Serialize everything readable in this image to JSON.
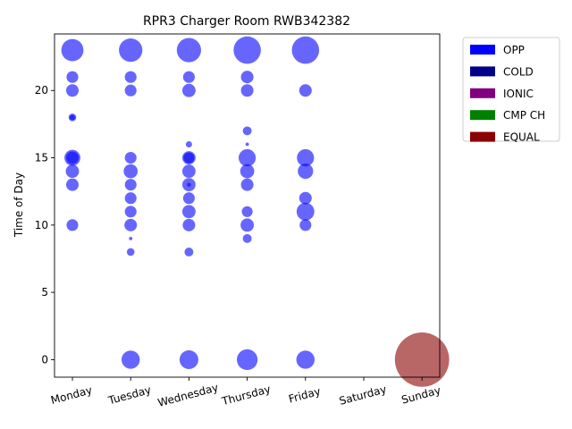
{
  "chart_data": {
    "type": "scatter",
    "title": "RPR3 Charger Room RWB342382",
    "xlabel": "",
    "ylabel": "Time of Day",
    "categories": [
      "Monday",
      "Tuesday",
      "Wednesday",
      "Thursday",
      "Friday",
      "Saturday",
      "Sunday"
    ],
    "ylim": [
      -1.3,
      24.2
    ],
    "yticks": [
      0,
      5,
      10,
      15,
      20
    ],
    "grid": false,
    "legend_position": "outside top-right",
    "legend": [
      {
        "label": "OPP",
        "color": "#0000ff"
      },
      {
        "label": "COLD",
        "color": "#00008b"
      },
      {
        "label": "IONIC",
        "color": "#800080"
      },
      {
        "label": "CMP CH",
        "color": "#008000"
      },
      {
        "label": "EQUAL",
        "color": "#8b0000"
      }
    ],
    "series": [
      {
        "type": "OPP",
        "color": "#0000ff",
        "points": [
          {
            "day": "Monday",
            "hour": 23,
            "size": 250
          },
          {
            "day": "Monday",
            "hour": 21,
            "size": 70
          },
          {
            "day": "Monday",
            "hour": 20,
            "size": 80
          },
          {
            "day": "Monday",
            "hour": 18,
            "size": 30
          },
          {
            "day": "Monday",
            "hour": 18,
            "size": 15
          },
          {
            "day": "Monday",
            "hour": 15,
            "size": 130
          },
          {
            "day": "Monday",
            "hour": 15,
            "size": 80
          },
          {
            "day": "Monday",
            "hour": 14,
            "size": 90
          },
          {
            "day": "Monday",
            "hour": 13,
            "size": 80
          },
          {
            "day": "Monday",
            "hour": 10,
            "size": 70
          },
          {
            "day": "Tuesday",
            "hour": 23,
            "size": 280
          },
          {
            "day": "Tuesday",
            "hour": 21,
            "size": 70
          },
          {
            "day": "Tuesday",
            "hour": 20,
            "size": 70
          },
          {
            "day": "Tuesday",
            "hour": 15,
            "size": 70
          },
          {
            "day": "Tuesday",
            "hour": 14,
            "size": 100
          },
          {
            "day": "Tuesday",
            "hour": 13,
            "size": 70
          },
          {
            "day": "Tuesday",
            "hour": 12,
            "size": 70
          },
          {
            "day": "Tuesday",
            "hour": 11,
            "size": 70
          },
          {
            "day": "Tuesday",
            "hour": 10,
            "size": 80
          },
          {
            "day": "Tuesday",
            "hour": 9,
            "size": 6
          },
          {
            "day": "Tuesday",
            "hour": 8,
            "size": 30
          },
          {
            "day": "Tuesday",
            "hour": 0,
            "size": 170
          },
          {
            "day": "Wednesday",
            "hour": 23,
            "size": 300
          },
          {
            "day": "Wednesday",
            "hour": 21,
            "size": 70
          },
          {
            "day": "Wednesday",
            "hour": 20,
            "size": 90
          },
          {
            "day": "Wednesday",
            "hour": 16,
            "size": 20
          },
          {
            "day": "Wednesday",
            "hour": 15,
            "size": 90
          },
          {
            "day": "Wednesday",
            "hour": 15,
            "size": 60
          },
          {
            "day": "Wednesday",
            "hour": 14,
            "size": 90
          },
          {
            "day": "Wednesday",
            "hour": 13,
            "size": 90
          },
          {
            "day": "Wednesday",
            "hour": 13,
            "size": 8
          },
          {
            "day": "Wednesday",
            "hour": 12,
            "size": 70
          },
          {
            "day": "Wednesday",
            "hour": 11,
            "size": 90
          },
          {
            "day": "Wednesday",
            "hour": 10,
            "size": 80
          },
          {
            "day": "Wednesday",
            "hour": 8,
            "size": 40
          },
          {
            "day": "Wednesday",
            "hour": 0,
            "size": 180
          },
          {
            "day": "Thursday",
            "hour": 23,
            "size": 380
          },
          {
            "day": "Thursday",
            "hour": 21,
            "size": 80
          },
          {
            "day": "Thursday",
            "hour": 20,
            "size": 80
          },
          {
            "day": "Thursday",
            "hour": 17,
            "size": 40
          },
          {
            "day": "Thursday",
            "hour": 16,
            "size": 6
          },
          {
            "day": "Thursday",
            "hour": 15,
            "size": 150
          },
          {
            "day": "Thursday",
            "hour": 14,
            "size": 100
          },
          {
            "day": "Thursday",
            "hour": 13,
            "size": 80
          },
          {
            "day": "Thursday",
            "hour": 11,
            "size": 60
          },
          {
            "day": "Thursday",
            "hour": 10,
            "size": 90
          },
          {
            "day": "Thursday",
            "hour": 9,
            "size": 40
          },
          {
            "day": "Thursday",
            "hour": 0,
            "size": 220
          },
          {
            "day": "Friday",
            "hour": 23,
            "size": 380
          },
          {
            "day": "Friday",
            "hour": 20,
            "size": 80
          },
          {
            "day": "Friday",
            "hour": 15,
            "size": 150
          },
          {
            "day": "Friday",
            "hour": 14,
            "size": 120
          },
          {
            "day": "Friday",
            "hour": 12,
            "size": 80
          },
          {
            "day": "Friday",
            "hour": 11,
            "size": 160
          },
          {
            "day": "Friday",
            "hour": 10,
            "size": 70
          },
          {
            "day": "Friday",
            "hour": 0,
            "size": 170
          }
        ]
      },
      {
        "type": "EQUAL",
        "color": "#8b0000",
        "points": [
          {
            "day": "Sunday",
            "hour": 0,
            "size": 1500
          }
        ]
      }
    ]
  }
}
